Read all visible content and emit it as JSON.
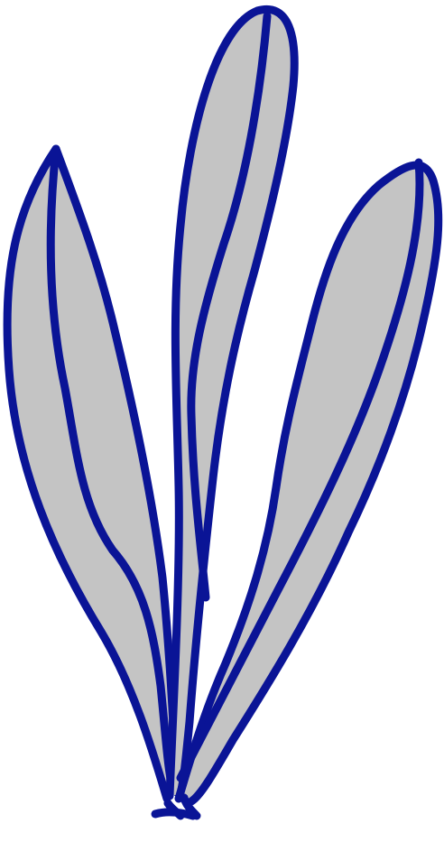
{
  "drawing": {
    "subject": "three-leaf-plant-icon",
    "leaf_count": 3,
    "colors": {
      "background": "#ffffff",
      "leaf_fill": "#c4c4c4",
      "outline": "#0a1496"
    }
  }
}
